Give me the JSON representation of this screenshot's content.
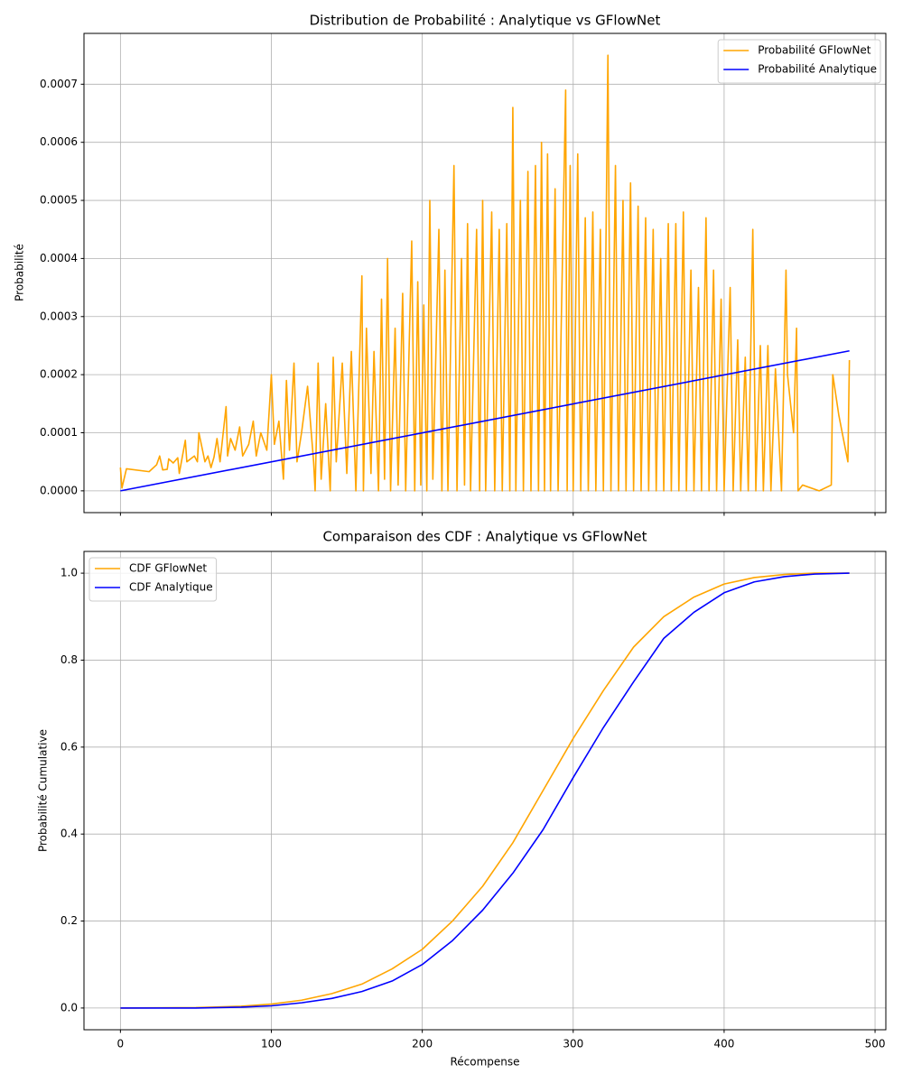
{
  "chart_data": [
    {
      "type": "line",
      "title": "Distribution de Probabilité : Analytique vs GFlowNet",
      "ylabel": "Probabilité",
      "xlim": [
        -24.15,
        507.15
      ],
      "ylim": [
        -3.75e-05,
        0.0007875
      ],
      "xticks": [
        0,
        100,
        200,
        300,
        400,
        500
      ],
      "yticks": [
        {
          "value": 0,
          "label": "0.0000"
        },
        {
          "value": 0.0001,
          "label": "0.0001"
        },
        {
          "value": 0.0002,
          "label": "0.0002"
        },
        {
          "value": 0.0003,
          "label": "0.0003"
        },
        {
          "value": 0.0004,
          "label": "0.0004"
        },
        {
          "value": 0.0005,
          "label": "0.0005"
        },
        {
          "value": 0.0006,
          "label": "0.0006"
        },
        {
          "value": 0.0007,
          "label": "0.0007"
        }
      ],
      "grid": true,
      "legend": "upper right",
      "series": [
        {
          "name": "Probabilité GFlowNet",
          "color": "orange",
          "x": [
            0,
            1,
            4,
            19,
            24,
            26,
            28,
            31,
            32,
            35,
            38,
            39,
            43,
            44,
            49,
            51,
            52,
            56,
            58,
            60,
            62,
            64,
            66,
            70,
            71,
            73,
            76,
            79,
            81,
            85,
            88,
            90,
            93,
            97,
            100,
            102,
            105,
            108,
            110,
            112,
            115,
            117,
            120,
            124,
            128,
            129,
            131,
            133,
            136,
            139,
            141,
            143,
            147,
            150,
            153,
            156,
            160,
            161,
            163,
            166,
            168,
            171,
            173,
            175,
            177,
            179,
            182,
            184,
            187,
            189,
            193,
            195,
            197,
            199,
            201,
            203,
            205,
            207,
            211,
            213,
            215,
            217,
            221,
            223,
            226,
            228,
            230,
            232,
            236,
            238,
            240,
            242,
            246,
            248,
            251,
            253,
            256,
            258,
            260,
            262,
            265,
            267,
            270,
            272,
            275,
            277,
            279,
            281,
            283,
            285,
            288,
            290,
            295,
            296,
            298,
            300,
            303,
            305,
            308,
            310,
            313,
            315,
            318,
            320,
            323,
            325,
            328,
            330,
            333,
            335,
            338,
            340,
            343,
            345,
            348,
            350,
            353,
            355,
            358,
            360,
            363,
            365,
            368,
            370,
            373,
            375,
            378,
            380,
            383,
            385,
            388,
            390,
            393,
            395,
            398,
            400,
            404,
            406,
            409,
            411,
            414,
            416,
            419,
            421,
            424,
            426,
            429,
            431,
            434,
            438,
            441,
            442,
            446,
            448,
            449,
            452,
            463,
            471,
            472,
            476,
            482,
            483
          ],
          "values": [
            4e-05,
            5e-06,
            3.8e-05,
            3.3e-05,
            4.5e-05,
            6e-05,
            3.6e-05,
            3.7e-05,
            5.5e-05,
            4.8e-05,
            5.7e-05,
            3e-05,
            8.7e-05,
            5e-05,
            6e-05,
            5e-05,
            0.0001,
            5e-05,
            6e-05,
            4e-05,
            5.8e-05,
            9e-05,
            5e-05,
            0.000145,
            6e-05,
            9e-05,
            7e-05,
            0.00011,
            6e-05,
            8e-05,
            0.00012,
            6e-05,
            0.0001,
            7e-05,
            0.0002,
            8e-05,
            0.00012,
            2e-05,
            0.00019,
            7e-05,
            0.00022,
            5e-05,
            0.0001,
            0.00018,
            5e-05,
            0,
            0.00022,
            2e-05,
            0.00015,
            0,
            0.00023,
            5e-05,
            0.00022,
            3e-05,
            0.00024,
            0,
            0.00037,
            0,
            0.00028,
            3e-05,
            0.00024,
            0,
            0.00033,
            2e-05,
            0.0004,
            0,
            0.00028,
            1e-05,
            0.00034,
            0,
            0.00043,
            0,
            0.00036,
            1e-05,
            0.00032,
            0,
            0.0005,
            2e-05,
            0.00045,
            0,
            0.00038,
            0,
            0.00056,
            0,
            0.0004,
            1e-05,
            0.00046,
            0,
            0.00045,
            0,
            0.0005,
            0,
            0.00048,
            0,
            0.00045,
            0,
            0.00046,
            0,
            0.00066,
            0,
            0.0005,
            0,
            0.00055,
            0,
            0.00056,
            0,
            0.0006,
            0,
            0.00058,
            0,
            0.00052,
            0,
            0.00069,
            0,
            0.00056,
            0,
            0.00058,
            0,
            0.00047,
            0,
            0.00048,
            0,
            0.00045,
            0,
            0.00075,
            0,
            0.00056,
            0,
            0.0005,
            0,
            0.00053,
            0,
            0.00049,
            0,
            0.00047,
            0,
            0.00045,
            0,
            0.0004,
            0,
            0.00046,
            0,
            0.00046,
            0,
            0.00048,
            0,
            0.00038,
            0,
            0.00035,
            0,
            0.00047,
            0,
            0.00038,
            0,
            0.00033,
            0,
            0.00035,
            0,
            0.00026,
            0,
            0.00023,
            0,
            0.00045,
            0,
            0.00025,
            0,
            0.00025,
            0,
            0.00021,
            0,
            0.00038,
            0.0002,
            0.0001,
            0.00028,
            0,
            1e-05,
            0,
            1e-05,
            0.0002,
            0.00013,
            5e-05,
            0.000225
          ]
        },
        {
          "name": "Probabilité Analytique",
          "color": "blue",
          "x": [
            0,
            483
          ],
          "values": [
            0,
            0.000241
          ]
        }
      ]
    },
    {
      "type": "line",
      "title": "Comparaison des CDF : Analytique vs GFlowNet",
      "ylabel": "Probabilité Cumulative",
      "xlabel": "Récompense",
      "xlim": [
        -24.15,
        507.15
      ],
      "ylim": [
        -0.05,
        1.05
      ],
      "xticks": [
        0,
        100,
        200,
        300,
        400,
        500
      ],
      "yticks": [
        {
          "value": 0,
          "label": "0.0"
        },
        0.2,
        0.4,
        0.6,
        0.8,
        {
          "value": 1,
          "label": "1.0"
        }
      ],
      "xticklabels": true,
      "grid": true,
      "legend": "upper left",
      "series": [
        {
          "name": "CDF GFlowNet",
          "color": "orange",
          "x": [
            0,
            50,
            80,
            100,
            120,
            140,
            160,
            180,
            200,
            220,
            240,
            260,
            280,
            300,
            320,
            340,
            360,
            380,
            400,
            420,
            440,
            460,
            483
          ],
          "values": [
            0,
            0.001,
            0.004,
            0.009,
            0.018,
            0.033,
            0.055,
            0.09,
            0.135,
            0.2,
            0.28,
            0.38,
            0.5,
            0.62,
            0.73,
            0.83,
            0.9,
            0.945,
            0.975,
            0.99,
            0.997,
            1,
            1
          ]
        },
        {
          "name": "CDF Analytique",
          "color": "blue",
          "x": [
            0,
            50,
            80,
            100,
            120,
            140,
            160,
            180,
            200,
            220,
            240,
            260,
            280,
            300,
            320,
            340,
            360,
            380,
            400,
            420,
            440,
            460,
            483
          ],
          "values": [
            0,
            0,
            0.002,
            0.005,
            0.012,
            0.022,
            0.038,
            0.062,
            0.1,
            0.155,
            0.225,
            0.31,
            0.41,
            0.53,
            0.645,
            0.75,
            0.85,
            0.91,
            0.955,
            0.98,
            0.992,
            0.998,
            1
          ]
        }
      ]
    }
  ]
}
